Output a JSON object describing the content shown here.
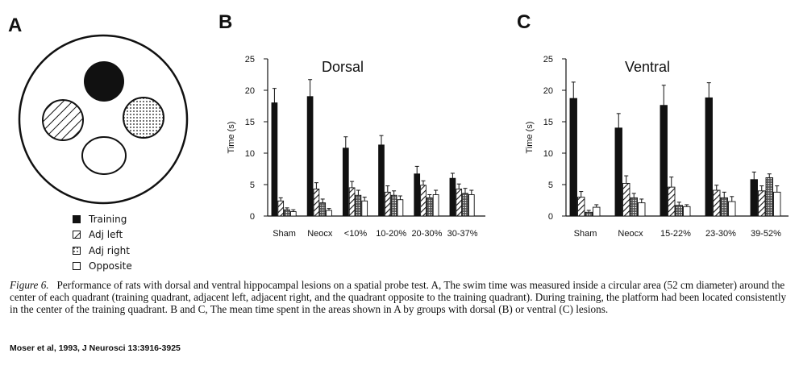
{
  "panel_letters": {
    "a": "A",
    "b": "B",
    "c": "C"
  },
  "legend": [
    {
      "label": "Training",
      "pattern": "solid"
    },
    {
      "label": "Adj left",
      "pattern": "hatch"
    },
    {
      "label": "Adj right",
      "pattern": "dots"
    },
    {
      "label": "Opposite",
      "pattern": "open"
    }
  ],
  "colors": {
    "ink": "#111111",
    "background": "#ffffff"
  },
  "chart_data": [
    {
      "type": "bar",
      "panel": "B",
      "title": "Dorsal",
      "ylabel": "Time (s)",
      "ylim": [
        0,
        25
      ],
      "yticks": [
        0,
        5,
        10,
        15,
        20,
        25
      ],
      "categories": [
        "Sham",
        "Neocx",
        "<10%",
        "10-20%",
        "20-30%",
        "30-37%"
      ],
      "series": [
        {
          "name": "Training",
          "pattern": "solid",
          "values": [
            18.0,
            19.0,
            10.8,
            11.3,
            6.7,
            6.0
          ],
          "errors": [
            2.3,
            2.7,
            1.8,
            1.5,
            1.2,
            0.8
          ]
        },
        {
          "name": "Adj left",
          "pattern": "hatch",
          "values": [
            2.4,
            4.3,
            4.5,
            3.8,
            4.9,
            4.3
          ],
          "errors": [
            0.5,
            1.0,
            1.0,
            1.0,
            0.7,
            0.8
          ]
        },
        {
          "name": "Adj right",
          "pattern": "dots",
          "values": [
            1.0,
            2.1,
            3.3,
            3.3,
            2.9,
            3.6
          ],
          "errors": [
            0.3,
            0.6,
            0.8,
            0.7,
            0.5,
            0.8
          ]
        },
        {
          "name": "Opposite",
          "pattern": "open",
          "values": [
            0.7,
            0.9,
            2.4,
            2.6,
            3.4,
            3.4
          ],
          "errors": [
            0.3,
            0.3,
            0.6,
            0.6,
            0.7,
            0.7
          ]
        }
      ],
      "legend": "none",
      "grid": false
    },
    {
      "type": "bar",
      "panel": "C",
      "title": "Ventral",
      "ylabel": "Time (s)",
      "ylim": [
        0,
        25
      ],
      "yticks": [
        0,
        5,
        10,
        15,
        20,
        25
      ],
      "categories": [
        "Sham",
        "Neocx",
        "15-22%",
        "23-30%",
        "39-52%"
      ],
      "series": [
        {
          "name": "Training",
          "pattern": "solid",
          "values": [
            18.7,
            14.0,
            17.6,
            18.8,
            5.8
          ],
          "errors": [
            2.6,
            2.3,
            3.2,
            2.4,
            1.2
          ]
        },
        {
          "name": "Adj left",
          "pattern": "hatch",
          "values": [
            3.0,
            5.2,
            4.6,
            4.1,
            4.0
          ],
          "errors": [
            0.9,
            1.2,
            1.6,
            0.8,
            0.8
          ]
        },
        {
          "name": "Adj right",
          "pattern": "dots",
          "values": [
            0.6,
            2.9,
            1.7,
            2.9,
            6.1
          ],
          "errors": [
            0.3,
            0.7,
            0.5,
            0.9,
            0.6
          ]
        },
        {
          "name": "Opposite",
          "pattern": "open",
          "values": [
            1.4,
            2.1,
            1.5,
            2.3,
            3.8
          ],
          "errors": [
            0.4,
            0.6,
            0.3,
            0.8,
            1.0
          ]
        }
      ],
      "legend": "none",
      "grid": false
    }
  ],
  "caption": {
    "figure_label": "Figure 6.",
    "text": "Performance of rats with dorsal and ventral hippocampal lesions on a spatial probe test. A, The swim time was measured inside a circular area (52 cm diameter) around the center of each quadrant (training quadrant, adjacent left, adjacent right, and the quadrant opposite to the training quadrant). During training, the platform had been located consistently in the center of the training quadrant. B and C, The mean time spent in the areas shown in A by groups with dorsal (B) or ventral (C) lesions."
  },
  "credit": "Moser et al, 1993, J Neurosci 13:3916-3925"
}
